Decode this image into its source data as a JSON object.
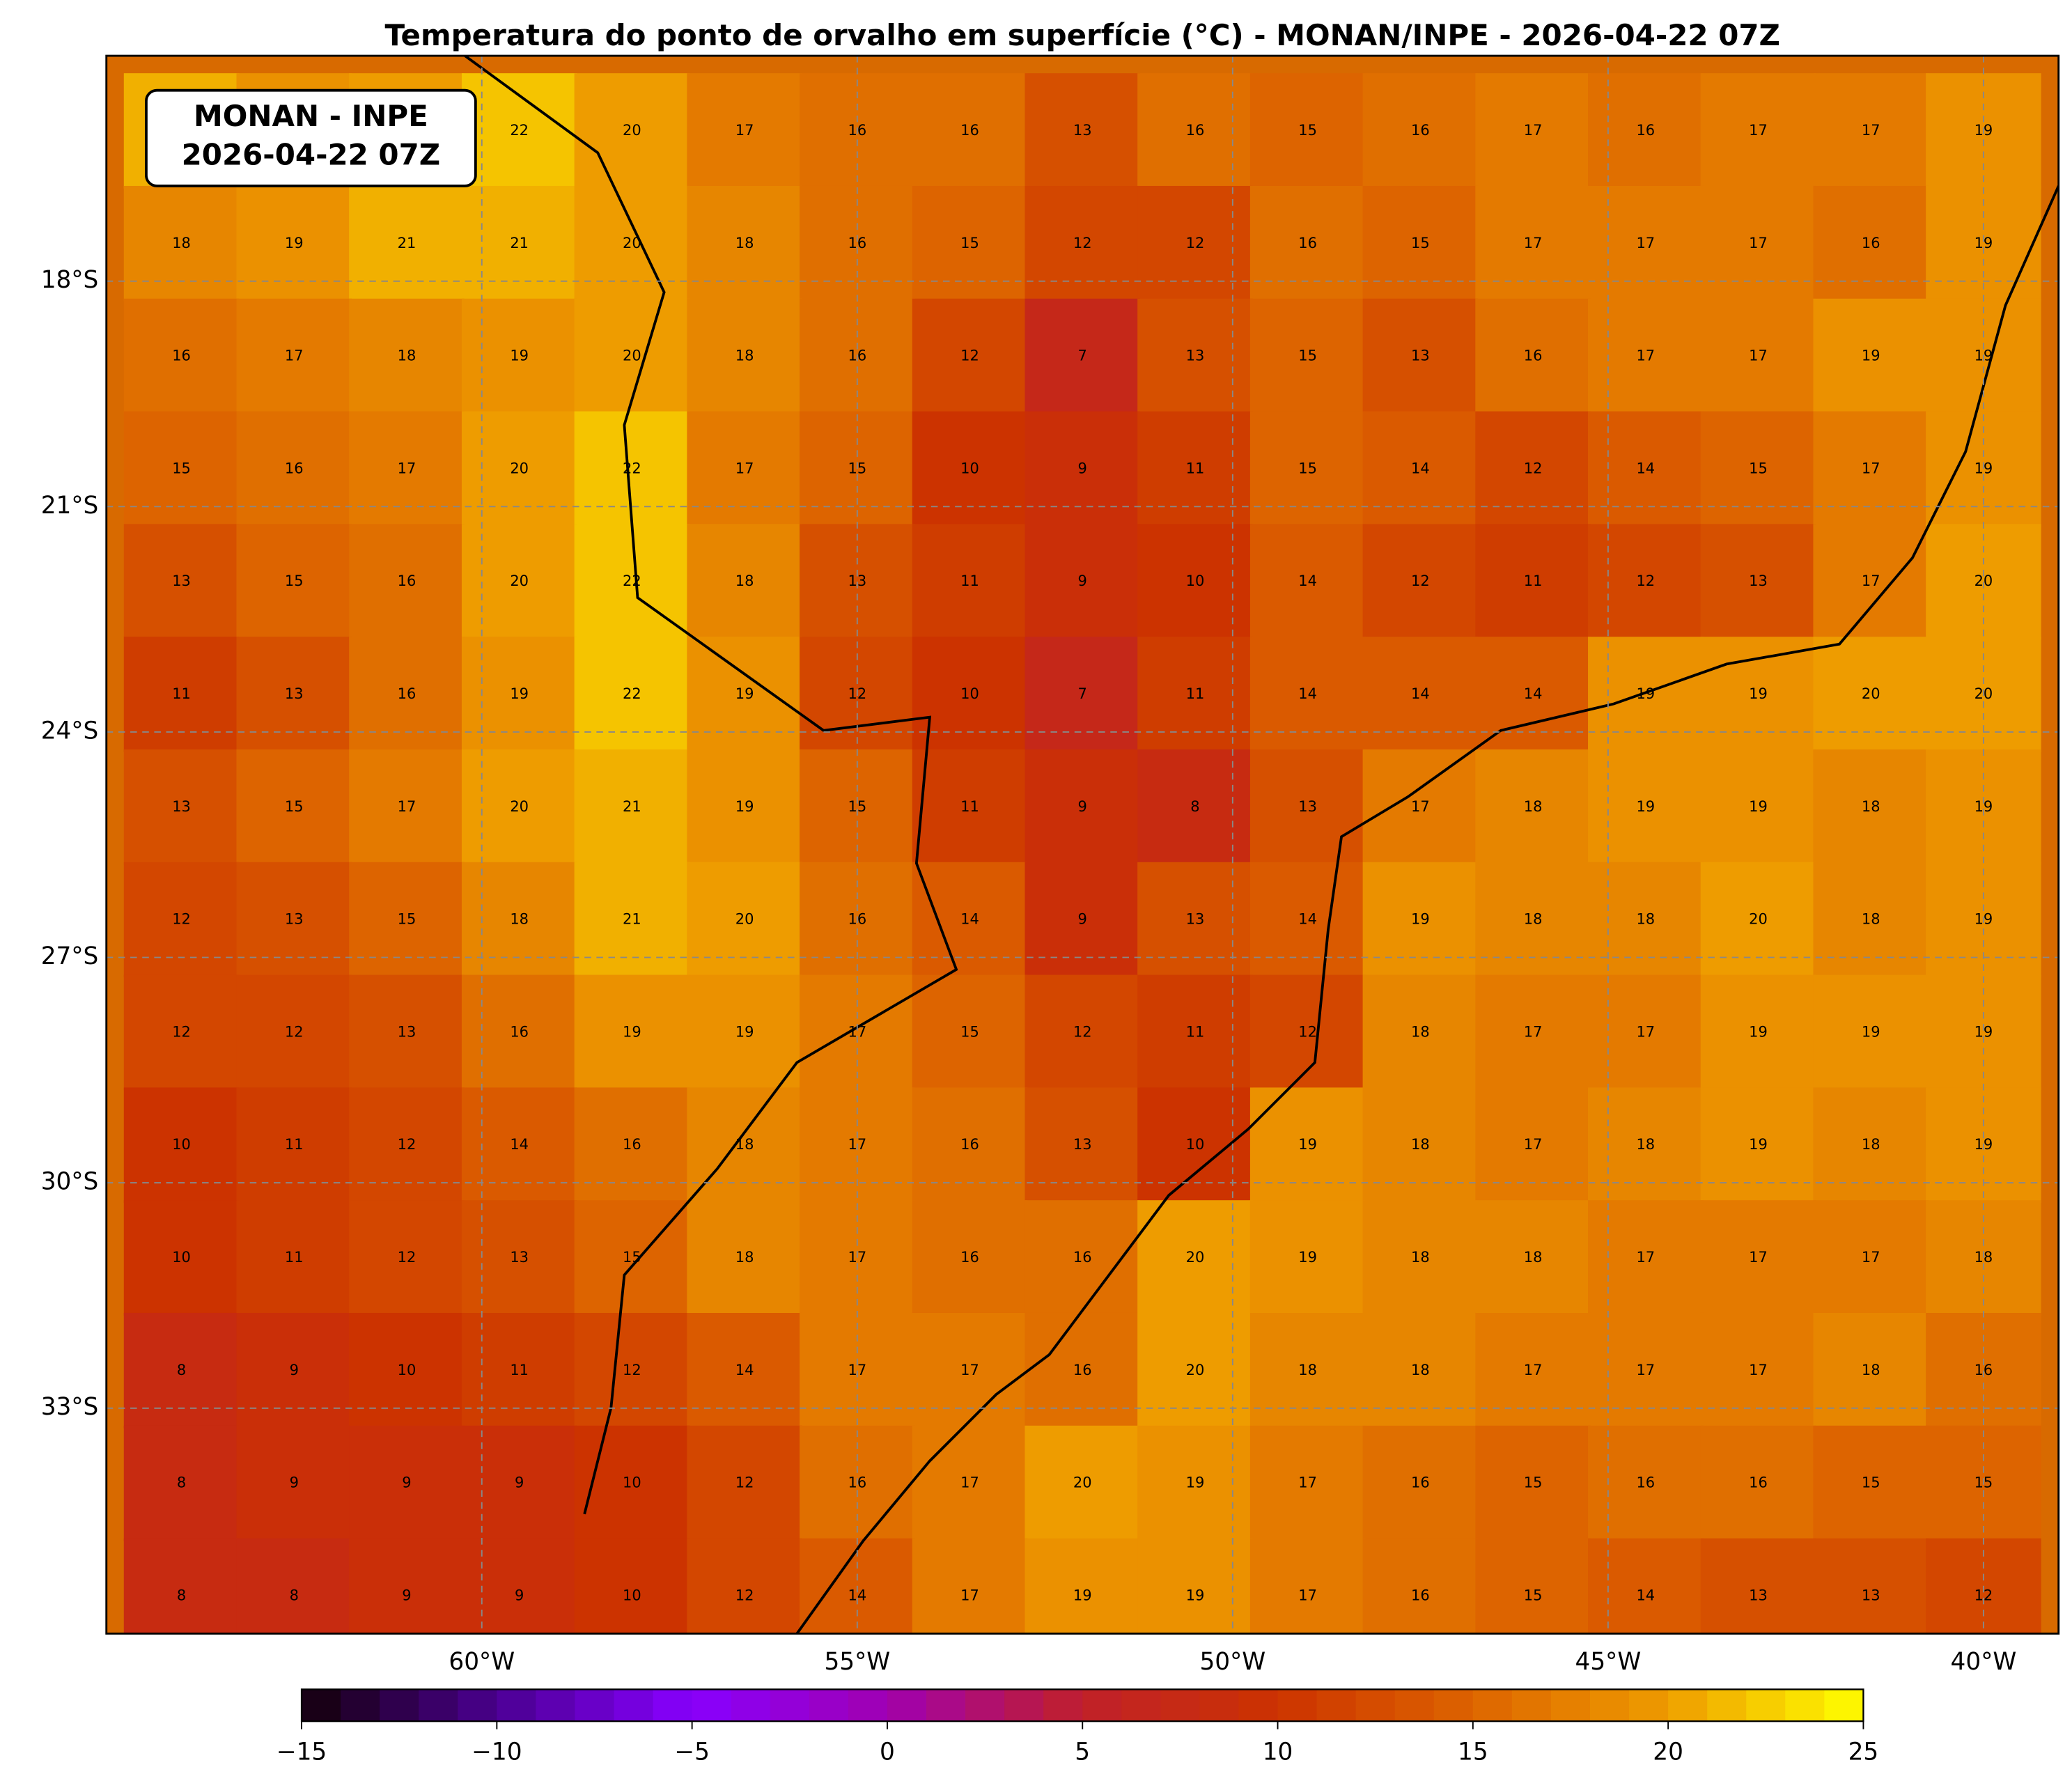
{
  "chart_data": {
    "type": "heatmap",
    "title": "Temperatura do ponto de orvalho em superfície (°C) - MONAN/INPE - 2026-04-22 07Z",
    "annotation": [
      "MONAN - INPE",
      "2026-04-22 07Z"
    ],
    "x": [
      -64,
      -62.5,
      -61,
      -59.5,
      -58,
      -56.5,
      -55,
      -53.5,
      -52,
      -50.5,
      -49,
      -47.5,
      -46,
      -44.5,
      -43,
      -41.5,
      -40
    ],
    "y": [
      -16,
      -17.5,
      -19,
      -20.5,
      -22,
      -23.5,
      -25,
      -26.5,
      -28,
      -29.5,
      -31,
      -32.5,
      -34,
      -35.5
    ],
    "values": [
      [
        21,
        19,
        20,
        22,
        20,
        17,
        16,
        16,
        13,
        16,
        15,
        16,
        17,
        16,
        17,
        17,
        19
      ],
      [
        18,
        19,
        21,
        21,
        20,
        18,
        16,
        15,
        12,
        12,
        16,
        15,
        17,
        17,
        17,
        16,
        19
      ],
      [
        16,
        17,
        18,
        19,
        20,
        18,
        16,
        12,
        7,
        13,
        15,
        13,
        16,
        17,
        17,
        19,
        19
      ],
      [
        15,
        16,
        17,
        20,
        22,
        17,
        15,
        10,
        9,
        11,
        15,
        14,
        12,
        14,
        15,
        17,
        19
      ],
      [
        13,
        15,
        16,
        20,
        22,
        18,
        13,
        11,
        9,
        10,
        14,
        12,
        11,
        12,
        13,
        17,
        20
      ],
      [
        11,
        13,
        16,
        19,
        22,
        19,
        12,
        10,
        7,
        11,
        14,
        14,
        14,
        19,
        19,
        20,
        20
      ],
      [
        13,
        15,
        17,
        20,
        21,
        19,
        15,
        11,
        9,
        8,
        13,
        17,
        18,
        19,
        19,
        18,
        19
      ],
      [
        12,
        13,
        15,
        18,
        21,
        20,
        16,
        14,
        9,
        13,
        14,
        19,
        18,
        18,
        20,
        18,
        19
      ],
      [
        12,
        12,
        13,
        16,
        19,
        19,
        17,
        15,
        12,
        11,
        12,
        18,
        17,
        17,
        19,
        19,
        19
      ],
      [
        10,
        11,
        12,
        14,
        16,
        18,
        17,
        16,
        13,
        10,
        19,
        18,
        17,
        18,
        19,
        18,
        19
      ],
      [
        10,
        11,
        12,
        13,
        15,
        18,
        17,
        16,
        16,
        20,
        19,
        18,
        18,
        17,
        17,
        17,
        18
      ],
      [
        8,
        9,
        10,
        11,
        12,
        14,
        17,
        17,
        16,
        20,
        18,
        18,
        17,
        17,
        17,
        18,
        16
      ],
      [
        8,
        9,
        9,
        9,
        10,
        12,
        16,
        17,
        20,
        19,
        17,
        16,
        15,
        16,
        16,
        15,
        15
      ],
      [
        8,
        8,
        9,
        9,
        10,
        12,
        14,
        17,
        19,
        19,
        17,
        16,
        15,
        14,
        13,
        13,
        12
      ]
    ],
    "xlim": [
      -65,
      -39
    ],
    "ylim": [
      -36,
      -15
    ],
    "xticks": [
      {
        "value": -60,
        "label": "60°W"
      },
      {
        "value": -55,
        "label": "55°W"
      },
      {
        "value": -50,
        "label": "50°W"
      },
      {
        "value": -45,
        "label": "45°W"
      },
      {
        "value": -40,
        "label": "40°W"
      }
    ],
    "yticks": [
      {
        "value": -18,
        "label": "18°S"
      },
      {
        "value": -21,
        "label": "21°S"
      },
      {
        "value": -24,
        "label": "24°S"
      },
      {
        "value": -27,
        "label": "27°S"
      },
      {
        "value": -30,
        "label": "30°S"
      },
      {
        "value": -33,
        "label": "33°S"
      }
    ],
    "grid": true,
    "colorbar": {
      "range": [
        -15,
        25
      ],
      "ticks": [
        {
          "value": -15,
          "label": "−15"
        },
        {
          "value": -10,
          "label": "−10"
        },
        {
          "value": -5,
          "label": "−5"
        },
        0,
        5,
        10,
        15,
        20,
        25
      ],
      "colors": [
        "#14000a",
        "#4a0090",
        "#8800ff",
        "#a000b0",
        "#c0202a",
        "#cc3300",
        "#dd6400",
        "#ee9c00",
        "#ffff00"
      ]
    }
  }
}
